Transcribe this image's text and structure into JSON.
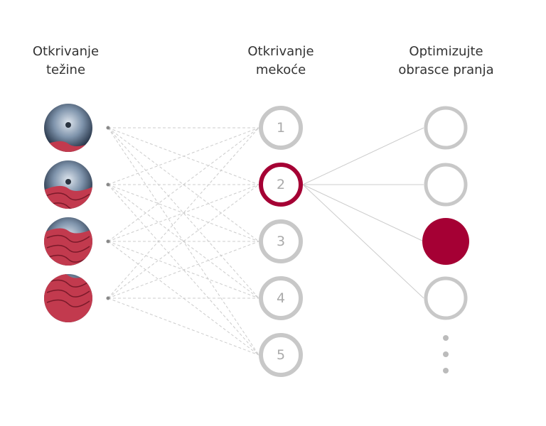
{
  "headers": {
    "weight": "Otkrivanje težine",
    "weight_l1": "Otkrivanje",
    "weight_l2": "težine",
    "softness_l1": "Otkrivanje",
    "softness_l2": "mekoće",
    "optimize_l1": "Optimizujte",
    "optimize_l2": "obrasce pranja"
  },
  "load_levels": [
    0.2,
    0.45,
    0.75,
    1.0
  ],
  "softness_levels": [
    "1",
    "2",
    "3",
    "4",
    "5"
  ],
  "selected_softness": "2",
  "selected_pattern_index": 2,
  "pattern_count_visible": 4,
  "colors": {
    "accent": "#a50034",
    "ring": "#c8c8c8",
    "line": "#cccccc"
  }
}
